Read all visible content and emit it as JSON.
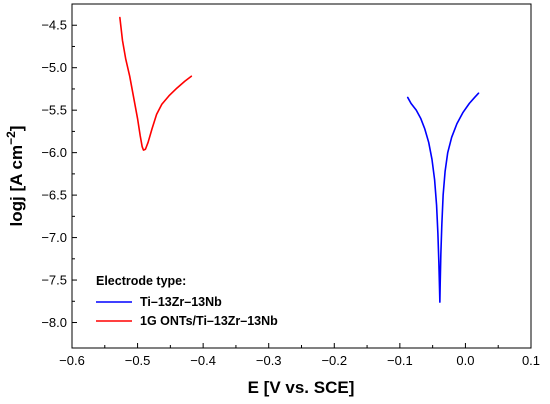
{
  "chart_data": {
    "type": "line",
    "xlabel": "E [V vs. SCE]",
    "ylabel_main": "logj [A cm",
    "ylabel_sup": "−2",
    "ylabel_close": "]",
    "xlim": [
      -0.6,
      0.1
    ],
    "ylim": [
      -8.3,
      -4.25
    ],
    "x_ticks": [
      -0.6,
      -0.5,
      -0.4,
      -0.3,
      -0.2,
      -0.1,
      0.0,
      0.1
    ],
    "x_tick_labels": [
      "−0.6",
      "−0.5",
      "−0.4",
      "−0.3",
      "−0.2",
      "−0.1",
      "0.0",
      "0.1"
    ],
    "y_ticks": [
      -8.0,
      -7.5,
      -7.0,
      -6.5,
      -6.0,
      -5.5,
      -5.0,
      -4.5
    ],
    "y_tick_labels": [
      "−8.0",
      "−7.5",
      "−7.0",
      "−6.5",
      "−6.0",
      "−5.5",
      "−5.0",
      "−4.5"
    ],
    "grid": false,
    "legend": {
      "title": "Electrode type:",
      "placement": "bottom-left"
    },
    "series": [
      {
        "name": "Ti–13Zr–13Nb",
        "color": "#0000ff",
        "points": [
          [
            -0.088,
            -5.35
          ],
          [
            -0.083,
            -5.42
          ],
          [
            -0.075,
            -5.5
          ],
          [
            -0.068,
            -5.6
          ],
          [
            -0.062,
            -5.72
          ],
          [
            -0.056,
            -5.88
          ],
          [
            -0.051,
            -6.08
          ],
          [
            -0.047,
            -6.32
          ],
          [
            -0.044,
            -6.62
          ],
          [
            -0.042,
            -6.95
          ],
          [
            -0.0405,
            -7.3
          ],
          [
            -0.0395,
            -7.6
          ],
          [
            -0.039,
            -7.76
          ],
          [
            -0.0385,
            -7.55
          ],
          [
            -0.0375,
            -7.2
          ],
          [
            -0.036,
            -6.85
          ],
          [
            -0.034,
            -6.5
          ],
          [
            -0.031,
            -6.22
          ],
          [
            -0.027,
            -6.0
          ],
          [
            -0.021,
            -5.82
          ],
          [
            -0.013,
            -5.66
          ],
          [
            -0.004,
            -5.53
          ],
          [
            0.006,
            -5.42
          ],
          [
            0.014,
            -5.35
          ],
          [
            0.02,
            -5.3
          ]
        ]
      },
      {
        "name": "1G ONTs/Ti–13Zr–13Nb",
        "color": "#ff0000",
        "points": [
          [
            -0.527,
            -4.41
          ],
          [
            -0.523,
            -4.68
          ],
          [
            -0.518,
            -4.9
          ],
          [
            -0.512,
            -5.1
          ],
          [
            -0.506,
            -5.35
          ],
          [
            -0.5,
            -5.6
          ],
          [
            -0.496,
            -5.8
          ],
          [
            -0.493,
            -5.93
          ],
          [
            -0.491,
            -5.97
          ],
          [
            -0.488,
            -5.96
          ],
          [
            -0.484,
            -5.88
          ],
          [
            -0.478,
            -5.72
          ],
          [
            -0.471,
            -5.55
          ],
          [
            -0.463,
            -5.43
          ],
          [
            -0.452,
            -5.33
          ],
          [
            -0.44,
            -5.24
          ],
          [
            -0.428,
            -5.16
          ],
          [
            -0.418,
            -5.1
          ]
        ]
      }
    ]
  }
}
